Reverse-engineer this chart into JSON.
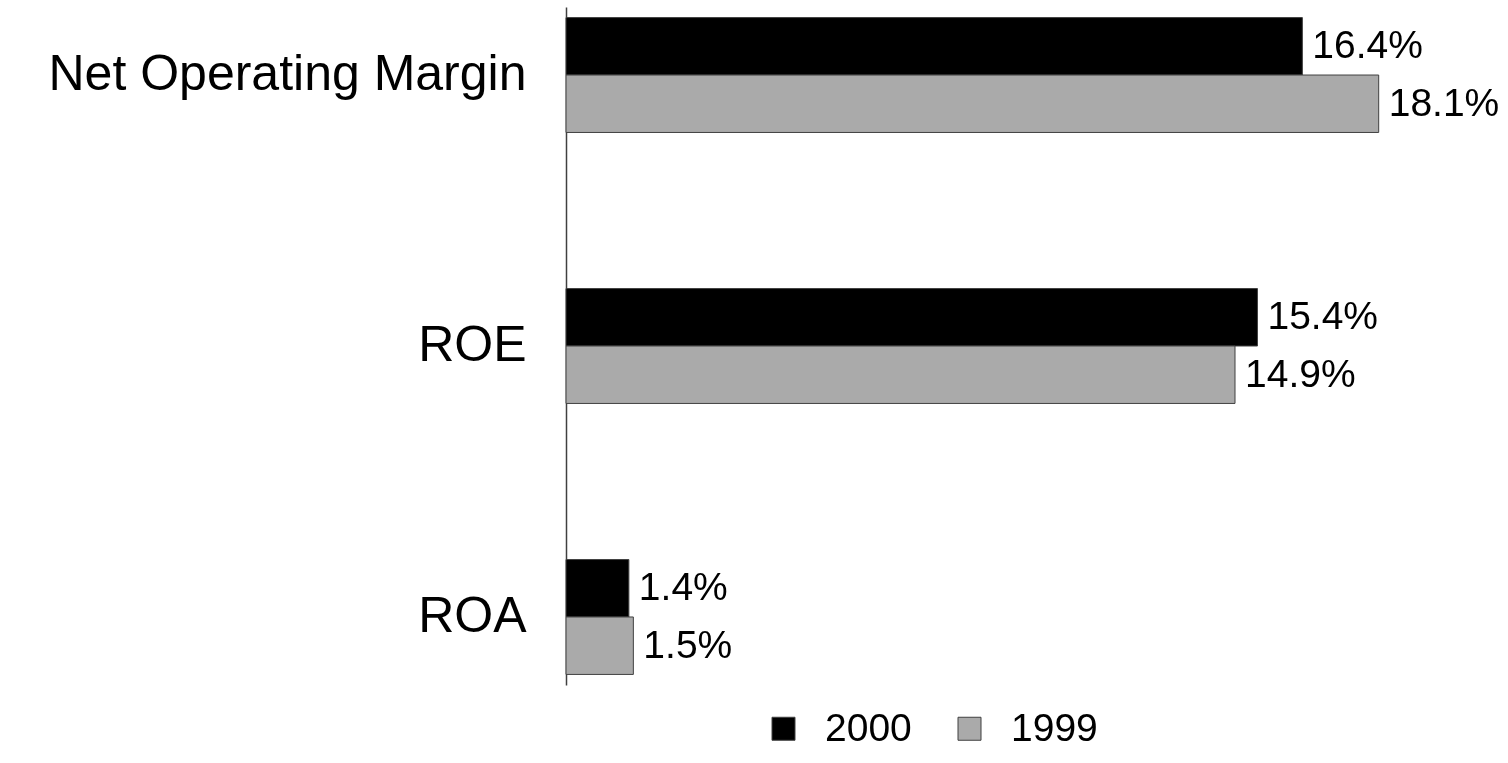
{
  "chart_data": {
    "type": "bar",
    "orientation": "horizontal",
    "categories": [
      "Net Operating Margin",
      "ROE",
      "ROA"
    ],
    "series": [
      {
        "name": "2000",
        "color": "#000000",
        "values": [
          16.4,
          15.4,
          1.4
        ],
        "value_labels": [
          "16.4%",
          "15.4%",
          "1.4%"
        ]
      },
      {
        "name": "1999",
        "color": "#aaaaaa",
        "values": [
          18.1,
          14.9,
          1.5
        ],
        "value_labels": [
          "18.1%",
          "14.9%",
          "1.5%"
        ]
      }
    ],
    "legend": "bottom",
    "tick_labels": "y",
    "grid": false
  }
}
